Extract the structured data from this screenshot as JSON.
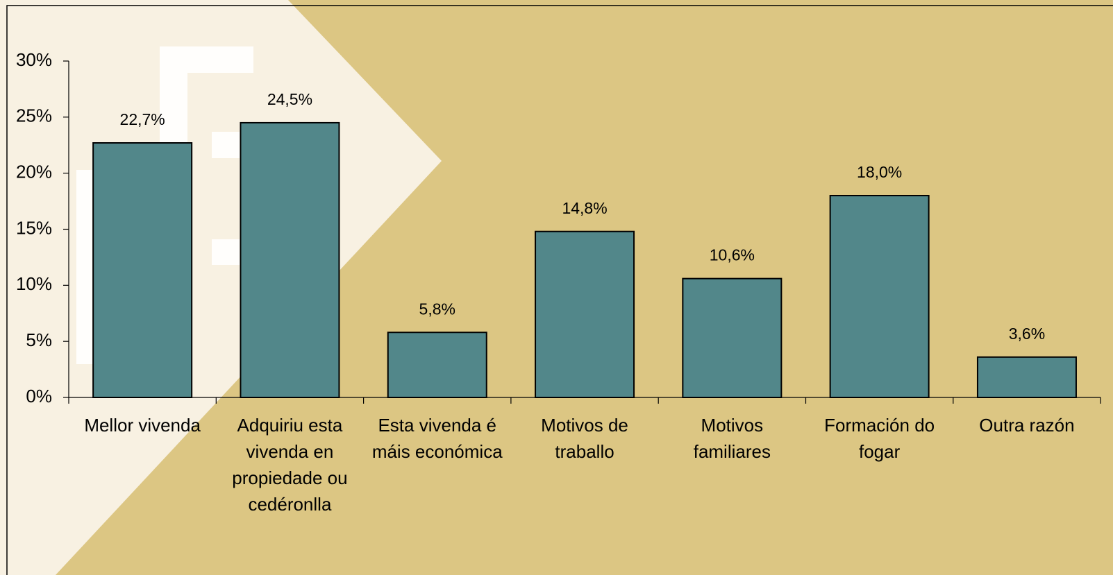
{
  "chart_data": {
    "type": "bar",
    "categories": [
      "Mellor vivenda",
      "Adquiriu esta vivenda en propiedade ou cedéronlla",
      "Esta vivenda é máis económica",
      "Motivos de traballo",
      "Motivos familiares",
      "Formación do fogar",
      "Outra razón"
    ],
    "values": [
      22.7,
      24.5,
      5.8,
      14.8,
      10.6,
      18.0,
      3.6
    ],
    "value_labels": [
      "22,7%",
      "24,5%",
      "5,8%",
      "14,8%",
      "10,6%",
      "18,0%",
      "3,6%"
    ],
    "color": "#52878a",
    "ylim": [
      0,
      30
    ],
    "yticks": [
      {
        "value": 0,
        "label": "0%"
      },
      {
        "value": 5,
        "label": "5%"
      },
      {
        "value": 10,
        "label": "10%"
      },
      {
        "value": 15,
        "label": "15%"
      },
      {
        "value": 20,
        "label": "20%"
      },
      {
        "value": 25,
        "label": "25%"
      },
      {
        "value": 30,
        "label": "30%"
      }
    ],
    "grid": false
  }
}
